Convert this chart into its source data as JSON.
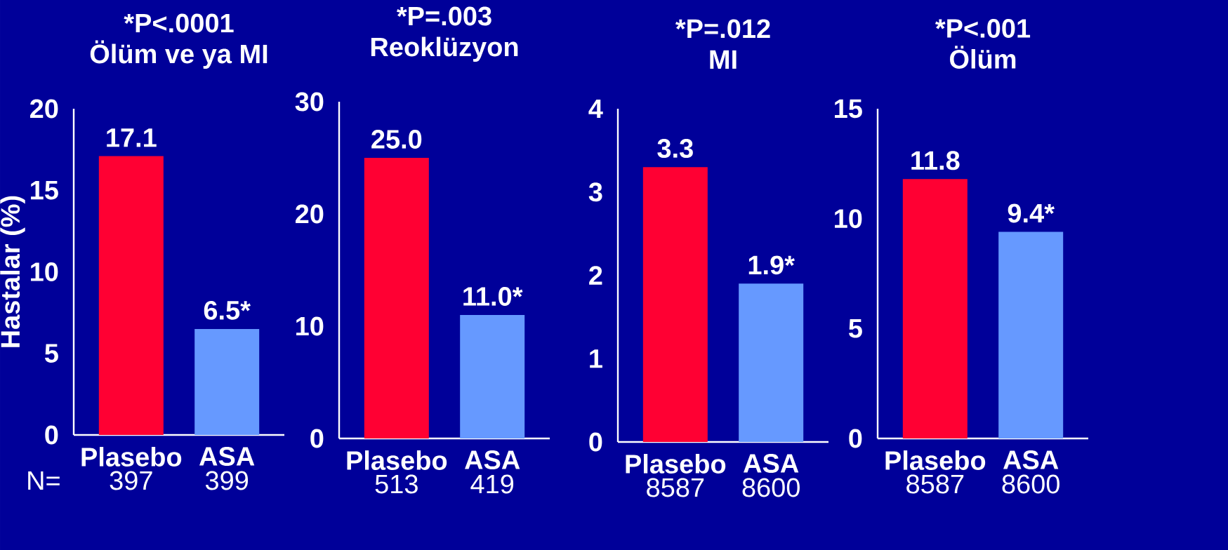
{
  "chart_data": [
    {
      "type": "bar",
      "subtitle": "*P<.0001",
      "title": "Ölüm ve ya MI",
      "ylabel": "Hastalar (%)",
      "categories": [
        "Plasebo",
        "ASA"
      ],
      "values": [
        17.1,
        6.5
      ],
      "colors": [
        "#ff0033",
        "#6699ff"
      ],
      "value_labels": [
        "17.1",
        "6.5*"
      ],
      "ylim": [
        0,
        20
      ],
      "yticks": [
        0,
        5,
        10,
        15,
        20
      ],
      "annotations": [
        "N=",
        "397",
        "399"
      ]
    },
    {
      "type": "bar",
      "subtitle": "*P=.003",
      "title": "Reoklüzyon",
      "categories": [
        "Plasebo",
        "ASA"
      ],
      "values": [
        25.0,
        11.0
      ],
      "colors": [
        "#ff0033",
        "#6699ff"
      ],
      "value_labels": [
        "25.0",
        "11.0*"
      ],
      "ylim": [
        0,
        30
      ],
      "yticks": [
        0,
        10,
        20,
        30
      ],
      "annotations": [
        "513",
        "419"
      ]
    },
    {
      "type": "bar",
      "subtitle": "*P=.012",
      "title": "MI",
      "categories": [
        "Plasebo",
        "ASA"
      ],
      "values": [
        3.3,
        1.9
      ],
      "colors": [
        "#ff0033",
        "#6699ff"
      ],
      "value_labels": [
        "3.3",
        "1.9*"
      ],
      "ylim": [
        0,
        4
      ],
      "yticks": [
        0,
        1,
        2,
        3,
        4
      ],
      "annotations": [
        "8587",
        "8600"
      ]
    },
    {
      "type": "bar",
      "subtitle": "*P<.001",
      "title": "Ölüm",
      "categories": [
        "Plasebo",
        "ASA"
      ],
      "values": [
        11.8,
        9.4
      ],
      "colors": [
        "#ff0033",
        "#6699ff"
      ],
      "value_labels": [
        "11.8",
        "9.4*"
      ],
      "ylim": [
        0,
        15
      ],
      "yticks": [
        0,
        5,
        10,
        15
      ],
      "annotations": [
        "8587",
        "8600"
      ]
    }
  ]
}
